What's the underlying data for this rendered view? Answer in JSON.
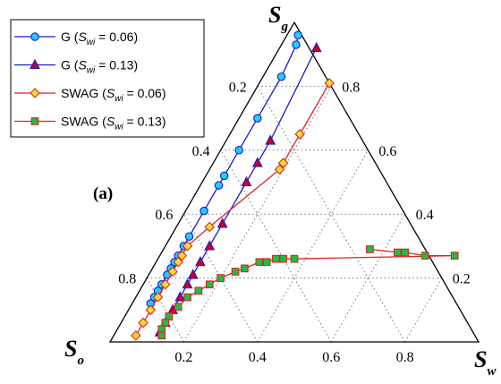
{
  "chart_data": {
    "type": "scatter",
    "subtype": "ternary",
    "panel_label": "(a)",
    "vertices": {
      "top": {
        "main": "S",
        "sub": "g"
      },
      "bottom_left": {
        "main": "S",
        "sub": "o"
      },
      "bottom_right": {
        "main": "S",
        "sub": "w"
      }
    },
    "ticks": {
      "bottom": [
        "0.2",
        "0.4",
        "0.6",
        "0.8"
      ],
      "left": [
        "0.2",
        "0.4",
        "0.6",
        "0.8"
      ],
      "right": [
        "0.8",
        "0.6",
        "0.4",
        "0.2"
      ]
    },
    "grid": true,
    "legend_position": "top-left",
    "series": [
      {
        "label_pre": "G (",
        "label_s": "S",
        "label_sub": "wi",
        "label_post": " = 0.06)",
        "color": "#1a1acc",
        "marker": "circle",
        "marker_fill": "#22ccff",
        "points": [
          {
            "sg": 0.96,
            "sw": 0.03
          },
          {
            "sg": 0.93,
            "sw": 0.04
          },
          {
            "sg": 0.83,
            "sw": 0.05
          },
          {
            "sg": 0.7,
            "sw": 0.05
          },
          {
            "sg": 0.6,
            "sw": 0.05
          },
          {
            "sg": 0.52,
            "sw": 0.05
          },
          {
            "sg": 0.49,
            "sw": 0.05
          },
          {
            "sg": 0.41,
            "sw": 0.05
          },
          {
            "sg": 0.33,
            "sw": 0.05
          },
          {
            "sg": 0.3,
            "sw": 0.05
          },
          {
            "sg": 0.27,
            "sw": 0.05
          },
          {
            "sg": 0.25,
            "sw": 0.05
          },
          {
            "sg": 0.23,
            "sw": 0.05
          },
          {
            "sg": 0.21,
            "sw": 0.05
          },
          {
            "sg": 0.18,
            "sw": 0.05
          },
          {
            "sg": 0.16,
            "sw": 0.05
          },
          {
            "sg": 0.14,
            "sw": 0.05
          },
          {
            "sg": 0.12,
            "sw": 0.05
          }
        ]
      },
      {
        "label_pre": "G (",
        "label_s": "S",
        "label_sub": "wi",
        "label_post": " = 0.13)",
        "color": "#1a1acc",
        "marker": "triangle",
        "marker_fill": "#cc0022",
        "points": [
          {
            "sg": 0.92,
            "sw": 0.1
          },
          {
            "sg": 0.63,
            "sw": 0.12
          },
          {
            "sg": 0.56,
            "sw": 0.12
          },
          {
            "sg": 0.5,
            "sw": 0.12
          },
          {
            "sg": 0.37,
            "sw": 0.12
          },
          {
            "sg": 0.3,
            "sw": 0.12
          },
          {
            "sg": 0.25,
            "sw": 0.12
          },
          {
            "sg": 0.21,
            "sw": 0.12
          },
          {
            "sg": 0.18,
            "sw": 0.12
          },
          {
            "sg": 0.14,
            "sw": 0.12
          },
          {
            "sg": 0.1,
            "sw": 0.12
          },
          {
            "sg": 0.06,
            "sw": 0.12
          },
          {
            "sg": 0.03,
            "sw": 0.12
          }
        ]
      },
      {
        "label_pre": "SWAG (",
        "label_s": "S",
        "label_sub": "wi",
        "label_post": " = 0.06)",
        "color": "#dd2222",
        "marker": "diamond",
        "marker_fill": "#ffdd33",
        "points": [
          {
            "sg": 0.81,
            "sw": 0.19
          },
          {
            "sg": 0.65,
            "sw": 0.19
          },
          {
            "sg": 0.56,
            "sw": 0.19
          },
          {
            "sg": 0.54,
            "sw": 0.19
          },
          {
            "sg": 0.36,
            "sw": 0.09
          },
          {
            "sg": 0.3,
            "sw": 0.06
          },
          {
            "sg": 0.27,
            "sw": 0.06
          },
          {
            "sg": 0.25,
            "sw": 0.06
          },
          {
            "sg": 0.22,
            "sw": 0.06
          },
          {
            "sg": 0.18,
            "sw": 0.06
          },
          {
            "sg": 0.14,
            "sw": 0.06
          },
          {
            "sg": 0.1,
            "sw": 0.06
          },
          {
            "sg": 0.06,
            "sw": 0.06
          },
          {
            "sg": 0.02,
            "sw": 0.06
          }
        ]
      },
      {
        "label_pre": "SWAG (",
        "label_s": "S",
        "label_sub": "wi",
        "label_post": " = 0.13)",
        "color": "#dd2222",
        "marker": "square",
        "marker_fill": "#22bb44",
        "points": [
          {
            "sg": 0.29,
            "sw": 0.56
          },
          {
            "sg": 0.28,
            "sw": 0.64
          },
          {
            "sg": 0.28,
            "sw": 0.66
          },
          {
            "sg": 0.27,
            "sw": 0.72
          },
          {
            "sg": 0.27,
            "sw": 0.8
          },
          {
            "sg": 0.26,
            "sw": 0.37
          },
          {
            "sg": 0.26,
            "sw": 0.34
          },
          {
            "sg": 0.26,
            "sw": 0.32
          },
          {
            "sg": 0.25,
            "sw": 0.3
          },
          {
            "sg": 0.25,
            "sw": 0.28
          },
          {
            "sg": 0.23,
            "sw": 0.25
          },
          {
            "sg": 0.22,
            "sw": 0.23
          },
          {
            "sg": 0.2,
            "sw": 0.2
          },
          {
            "sg": 0.18,
            "sw": 0.18
          },
          {
            "sg": 0.16,
            "sw": 0.16
          },
          {
            "sg": 0.14,
            "sw": 0.14
          },
          {
            "sg": 0.11,
            "sw": 0.13
          },
          {
            "sg": 0.08,
            "sw": 0.12
          },
          {
            "sg": 0.06,
            "sw": 0.12
          },
          {
            "sg": 0.04,
            "sw": 0.12
          },
          {
            "sg": 0.02,
            "sw": 0.13
          }
        ]
      }
    ]
  }
}
